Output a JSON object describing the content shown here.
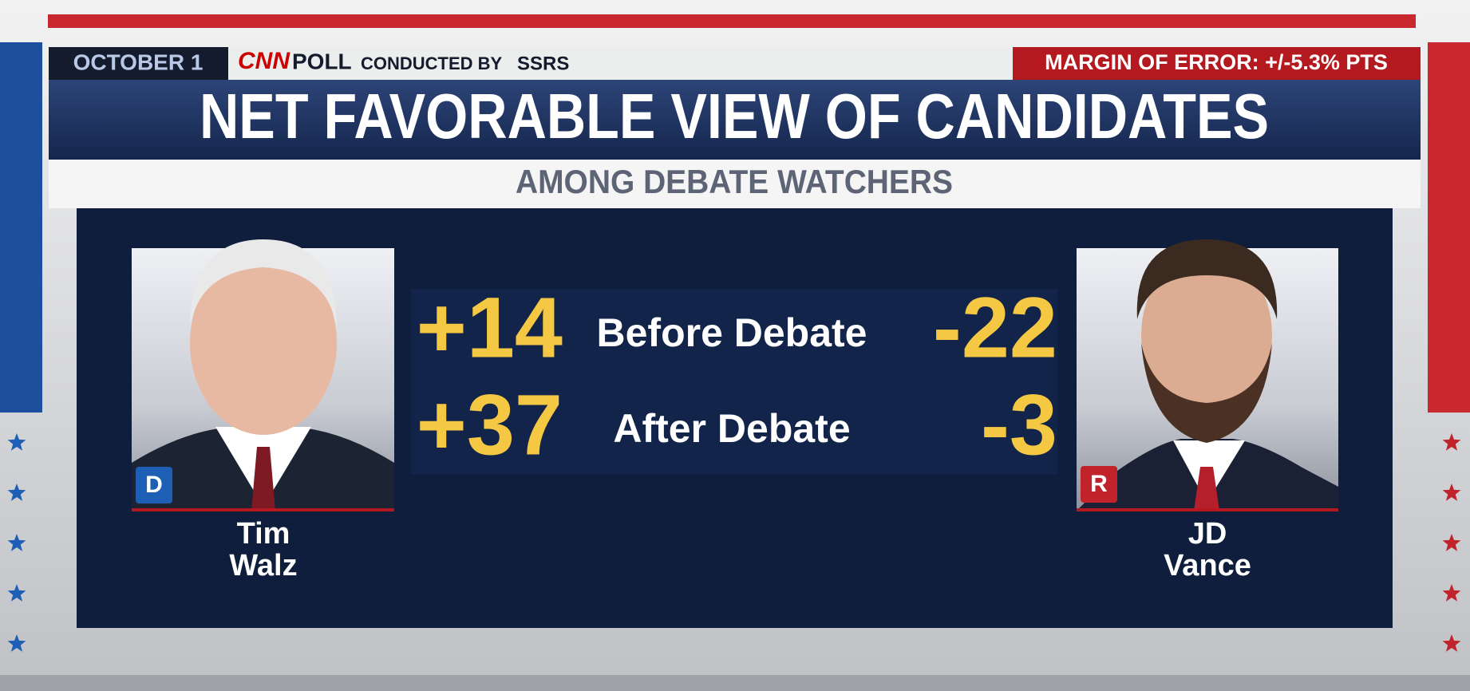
{
  "header": {
    "date": "OCTOBER 1",
    "brand": "CNN",
    "poll": "POLL",
    "conducted_by": "CONDUCTED BY",
    "pollster": "SSRS",
    "margin_of_error": "MARGIN OF ERROR: +/-5.3% PTS"
  },
  "title": "NET FAVORABLE VIEW OF CANDIDATES",
  "subtitle": "AMONG DEBATE WATCHERS",
  "rows": [
    "Before Debate",
    "After Debate"
  ],
  "candidates": [
    {
      "name": [
        "Tim",
        "Walz"
      ],
      "party": "D",
      "values": [
        "+14",
        "+37"
      ]
    },
    {
      "name": [
        "JD",
        "Vance"
      ],
      "party": "R",
      "values": [
        "-22",
        "-3"
      ]
    }
  ]
}
